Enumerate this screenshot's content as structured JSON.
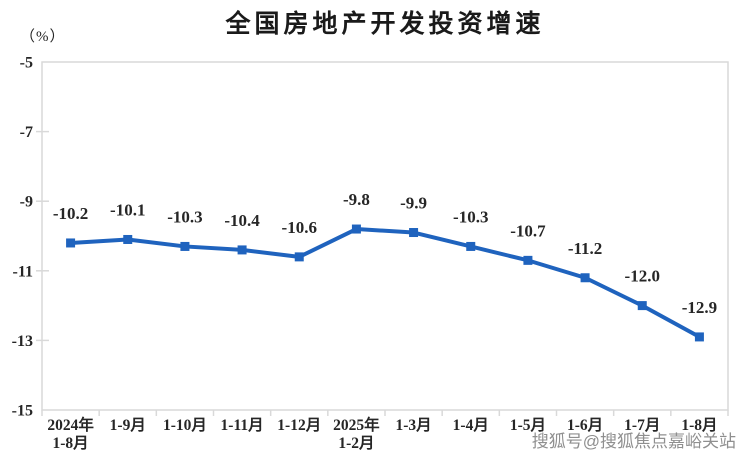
{
  "title": "全国房地产开发投资增速",
  "y_unit_label": "（%）",
  "watermark": "搜狐号@搜狐焦点嘉峪关站",
  "chart_data": {
    "type": "line",
    "title": "全国房地产开发投资增速",
    "ylabel": "（%）",
    "categories": [
      [
        "2024年",
        "1-8月"
      ],
      [
        "1-9月"
      ],
      [
        "1-10月"
      ],
      [
        "1-11月"
      ],
      [
        "1-12月"
      ],
      [
        "2025年",
        "1-2月"
      ],
      [
        "1-3月"
      ],
      [
        "1-4月"
      ],
      [
        "1-5月"
      ],
      [
        "1-6月"
      ],
      [
        "1-7月"
      ],
      [
        "1-8月"
      ]
    ],
    "series": [
      {
        "name": "全国房地产开发投资增速",
        "values": [
          -10.2,
          -10.1,
          -10.3,
          -10.4,
          -10.6,
          -9.8,
          -9.9,
          -10.3,
          -10.7,
          -11.2,
          -12.0,
          -12.9
        ]
      }
    ],
    "data_labels": [
      "-10.2",
      "-10.1",
      "-10.3",
      "-10.4",
      "-10.6",
      "-9.8",
      "-9.9",
      "-10.3",
      "-10.7",
      "-11.2",
      "-12.0",
      "-12.9"
    ],
    "ylim": [
      -15,
      -5
    ],
    "y_ticks": [
      -5,
      -7,
      -9,
      -11,
      -13,
      -15
    ],
    "y_tick_labels": [
      "-5",
      "-7",
      "-9",
      "-11",
      "-13",
      "-15"
    ],
    "grid": false,
    "legend": "none",
    "line_color": "#1F63BE",
    "marker": "square",
    "label_color": "#262626",
    "axis_color": "#D9D9D9"
  }
}
